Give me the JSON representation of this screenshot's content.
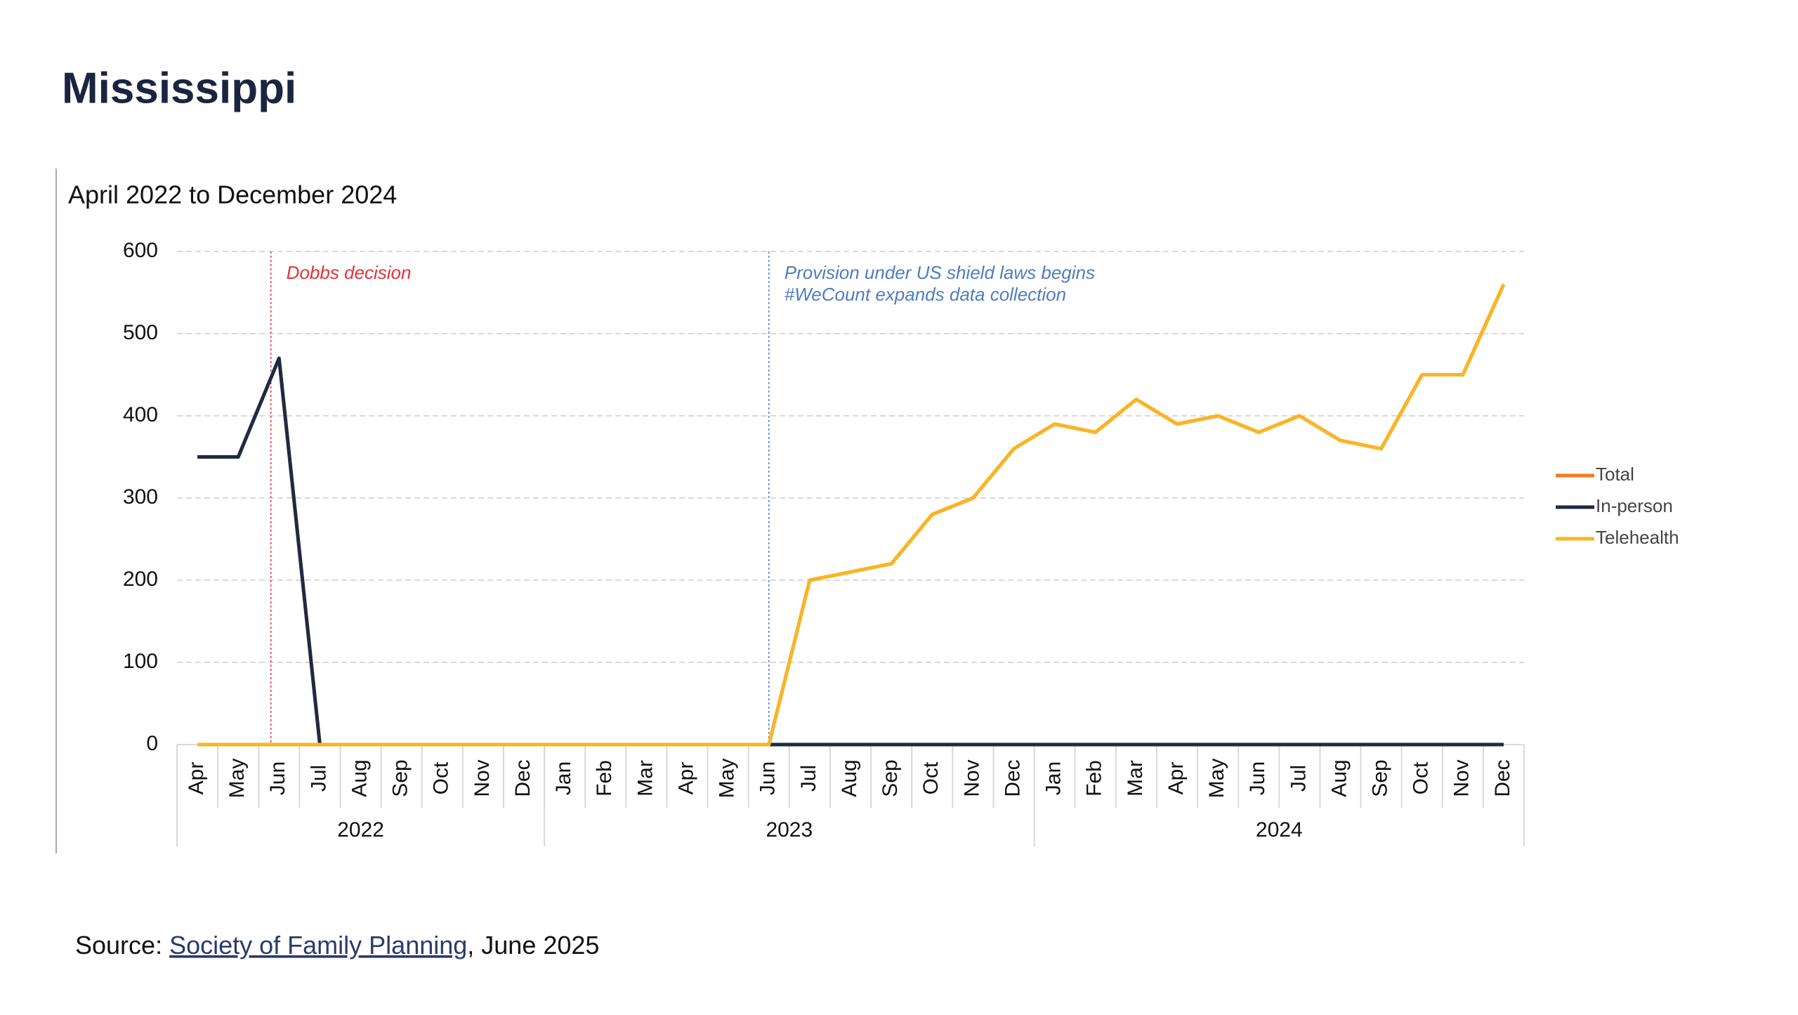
{
  "title": "Mississippi",
  "source": {
    "prefix": "Source: ",
    "link": "Society of Family Planning",
    "suffix": ", June 2025"
  },
  "chart_data": {
    "type": "line",
    "subtitle": "April 2022 to December 2024",
    "categories": [
      "Apr",
      "May",
      "Jun",
      "Jul",
      "Aug",
      "Sep",
      "Oct",
      "Nov",
      "Dec",
      "Jan",
      "Feb",
      "Mar",
      "Apr",
      "May",
      "Jun",
      "Jul",
      "Aug",
      "Sep",
      "Oct",
      "Nov",
      "Dec",
      "Jan",
      "Feb",
      "Mar",
      "Apr",
      "May",
      "Jun",
      "Jul",
      "Aug",
      "Sep",
      "Oct",
      "Nov",
      "Dec"
    ],
    "years": [
      {
        "label": "2022",
        "span": 9
      },
      {
        "label": "2023",
        "span": 12
      },
      {
        "label": "2024",
        "span": 12
      }
    ],
    "series": [
      {
        "name": "Total",
        "color": "#f47a20",
        "values": [
          350,
          350,
          470,
          0,
          0,
          0,
          0,
          0,
          0,
          0,
          0,
          0,
          0,
          0,
          0,
          200,
          210,
          220,
          280,
          300,
          360,
          390,
          380,
          420,
          390,
          400,
          380,
          400,
          370,
          360,
          450,
          450,
          560
        ]
      },
      {
        "name": "In-person",
        "color": "#1e2a44",
        "values": [
          350,
          350,
          470,
          0,
          0,
          0,
          0,
          0,
          0,
          0,
          0,
          0,
          0,
          0,
          0,
          0,
          0,
          0,
          0,
          0,
          0,
          0,
          0,
          0,
          0,
          0,
          0,
          0,
          0,
          0,
          0,
          0,
          0
        ]
      },
      {
        "name": "Telehealth",
        "color": "#f9b523",
        "values": [
          0,
          0,
          0,
          0,
          0,
          0,
          0,
          0,
          0,
          0,
          0,
          0,
          0,
          0,
          0,
          200,
          210,
          220,
          280,
          300,
          360,
          390,
          380,
          420,
          390,
          400,
          380,
          400,
          370,
          360,
          450,
          450,
          560
        ]
      }
    ],
    "annotations": [
      {
        "lines": [
          "Dobbs decision"
        ],
        "color": "#e8303a"
      },
      {
        "lines": [
          "Provision under US shield laws begins",
          "#WeCount expands data collection"
        ],
        "color": "#4f7cbf"
      }
    ],
    "ylim": [
      0,
      600
    ],
    "yticks": [
      0,
      100,
      200,
      300,
      400,
      500,
      600
    ],
    "grid": true,
    "legend": "right"
  }
}
